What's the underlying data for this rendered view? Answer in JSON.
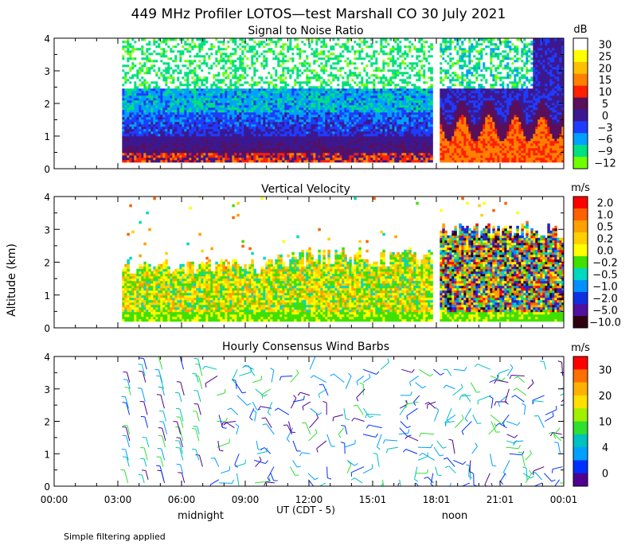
{
  "figure": {
    "title": "449 MHz Profiler LOTOS—test Marshall CO 30 July 2021",
    "ylabel": "Altitude (km)",
    "xlabel": "UT  (CDT - 5)",
    "x_ticks": [
      "00:00",
      "03:00",
      "06:00",
      "09:00",
      "12:00",
      "15:01",
      "18:01",
      "21:01",
      "00:01"
    ],
    "day_labels": {
      "midnight": "midnight",
      "noon": "noon"
    },
    "footnote": "Simple filtering applied"
  },
  "chart_data": [
    {
      "type": "heatmap",
      "title": "Signal to Noise Ratio",
      "ylim": [
        0,
        4
      ],
      "y_ticks": [
        "0",
        "1",
        "2",
        "3",
        "4"
      ],
      "data_x_range_hours": [
        3.2,
        24.0
      ],
      "gap_hours": [
        17.8,
        18.1
      ],
      "colorbar": {
        "unit": "dB",
        "labels": [
          "30",
          "25",
          "20",
          "15",
          "10",
          "5",
          "0",
          "−3",
          "−6",
          "−9",
          "−12"
        ],
        "colors": [
          "#ffffff",
          "#ffff00",
          "#ffc000",
          "#ff8000",
          "#ff2000",
          "#5a0f5a",
          "#3c1890",
          "#1e3cff",
          "#00a0ff",
          "#00e080",
          "#70ff00"
        ]
      },
      "profile_km": [
        {
          "alt": 0.2,
          "snr": 5
        },
        {
          "alt": 0.8,
          "snr": 0
        },
        {
          "alt": 1.5,
          "snr": -6
        },
        {
          "alt": 2.5,
          "snr": -12
        },
        {
          "alt": 4.0,
          "snr": 30
        }
      ]
    },
    {
      "type": "heatmap",
      "title": "Vertical Velocity",
      "ylim": [
        0,
        4
      ],
      "y_ticks": [
        "0",
        "1",
        "2",
        "3",
        "4"
      ],
      "data_x_range_hours": [
        3.2,
        24.0
      ],
      "colorbar": {
        "unit": "m/s",
        "labels": [
          "2.0",
          "1.0",
          "0.5",
          "0.2",
          "0.0",
          "−0.2",
          "−0.5",
          "−1.0",
          "−2.0",
          "−5.0",
          "−10.0"
        ],
        "colors": [
          "#ff0000",
          "#ff6000",
          "#ffa000",
          "#ffd000",
          "#ffff00",
          "#40e000",
          "#00d8c0",
          "#0090ff",
          "#1030e0",
          "#5010a0",
          "#300010"
        ]
      },
      "typical_range": [
        -0.5,
        0.5
      ]
    },
    {
      "type": "scatter",
      "title": "Hourly Consensus Wind Barbs",
      "ylim": [
        0,
        4
      ],
      "y_ticks": [
        "0",
        "1",
        "2",
        "3",
        "4"
      ],
      "x_range_hours": [
        3.2,
        24.0
      ],
      "colorbar": {
        "unit": "m/s",
        "labels": [
          "30",
          "20",
          "10",
          "4",
          "0"
        ],
        "colors": [
          "#ff0000",
          "#ff7000",
          "#ffb000",
          "#ffe000",
          "#a0f000",
          "#30e030",
          "#00c0c0",
          "#00a0ff",
          "#0030ff",
          "#500090"
        ]
      },
      "heights_km": [
        0.1,
        0.2,
        0.4,
        0.6,
        0.8,
        1.0,
        1.2,
        1.4,
        1.6,
        1.8,
        2.0,
        2.2,
        2.4,
        2.6,
        2.8,
        3.0,
        3.2,
        3.4,
        3.6
      ],
      "typical_speed_range": [
        0,
        12
      ]
    }
  ]
}
